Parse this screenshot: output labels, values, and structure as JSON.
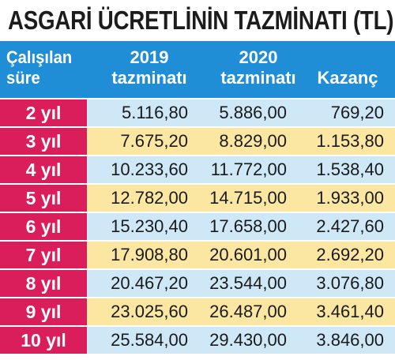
{
  "chart_data": {
    "type": "table",
    "title": "ASGARİ ÜCRETLİNİN TAZMİNATI (TL)",
    "columns": [
      {
        "lines": [
          "Çalışılan",
          "süre"
        ]
      },
      {
        "lines": [
          "2019",
          "tazminatı"
        ]
      },
      {
        "lines": [
          "2020",
          "tazminatı"
        ]
      },
      {
        "lines": [
          "Kazanç"
        ]
      }
    ],
    "rows": [
      {
        "label": "2 yıl",
        "v2019": "5.116,80",
        "v2020": "5.886,00",
        "gain": "769,20"
      },
      {
        "label": "3 yıl",
        "v2019": "7.675,20",
        "v2020": "8.829,00",
        "gain": "1.153,80"
      },
      {
        "label": "4 yıl",
        "v2019": "10.233,60",
        "v2020": "11.772,00",
        "gain": "1.538,40"
      },
      {
        "label": "5 yıl",
        "v2019": "12.782,00",
        "v2020": "14.715,00",
        "gain": "1.933,00"
      },
      {
        "label": "6 yıl",
        "v2019": "15.230,40",
        "v2020": "17.658,00",
        "gain": "2.427,60"
      },
      {
        "label": "7 yıl",
        "v2019": "17.908,80",
        "v2020": "20.601,00",
        "gain": "2.692,20"
      },
      {
        "label": "8 yıl",
        "v2019": "20.467,20",
        "v2020": "23.544,00",
        "gain": "3.076,80"
      },
      {
        "label": "9 yıl",
        "v2019": "23.025,60",
        "v2020": "26.487,00",
        "gain": "3.461,40"
      },
      {
        "label": "10 yıl",
        "v2019": "25.584,00",
        "v2020": "29.430,00",
        "gain": "3.846,00"
      }
    ],
    "colors": {
      "header": "#1f8ed6",
      "label": "#d91e5b",
      "row_odd": "#cfe8f8",
      "row_even": "#fbe7a2"
    }
  }
}
